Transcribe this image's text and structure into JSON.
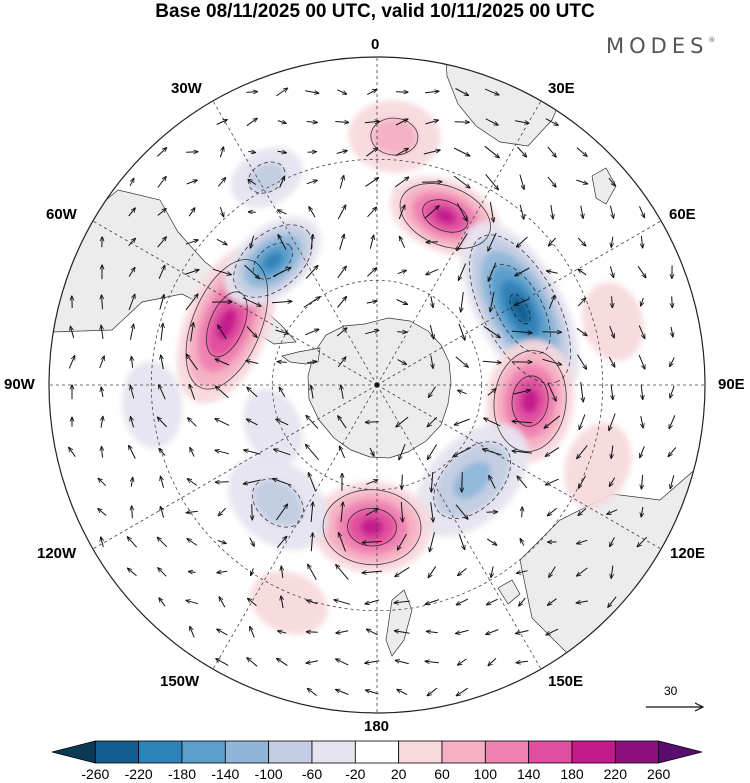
{
  "title": "Base 08/11/2025 00 UTC, valid 10/11/2025 00 UTC",
  "brand": "MODES",
  "brand_mark": "®",
  "longitude_labels": {
    "lon_0": "0",
    "lon_30e": "30E",
    "lon_60e": "60E",
    "lon_90e": "90E",
    "lon_120e": "120E",
    "lon_150e": "150E",
    "lon_180": "180",
    "lon_150w": "150W",
    "lon_120w": "120W",
    "lon_90w": "90W",
    "lon_60w": "60W",
    "lon_30w": "30W"
  },
  "vector_scale": {
    "value": "30"
  },
  "colorbar": {
    "labels": [
      "-260",
      "-220",
      "-180",
      "-140",
      "-100",
      "-60",
      "-20",
      "20",
      "60",
      "100",
      "140",
      "180",
      "220",
      "260"
    ],
    "colors": [
      "#0b3a57",
      "#135f8f",
      "#2f82b8",
      "#5a9ecb",
      "#8fb6d9",
      "#c3cde3",
      "#e6e4ef",
      "#ffffff",
      "#f8d9dd",
      "#f5b0c3",
      "#ee82b1",
      "#df4e9f",
      "#c31b8c",
      "#8d0f7c",
      "#560f6e"
    ]
  },
  "map_colors": {
    "land": "#ececec",
    "coast": "#333333",
    "grid": "#444444",
    "arrow": "#111111"
  },
  "anomalies": [
    {
      "name": "anomaly-high-africa-south",
      "lon": 22,
      "lat": -40,
      "value": 200,
      "a": 36,
      "b": 58
    },
    {
      "name": "anomaly-low-south-indian",
      "lon": 62,
      "lat": -45,
      "value": -240,
      "a": 44,
      "b": 96
    },
    {
      "name": "anomaly-high-kerguelen",
      "lon": 96,
      "lat": -47,
      "value": 210,
      "a": 44,
      "b": 62
    },
    {
      "name": "anomaly-low-south-australia",
      "lon": 135,
      "lat": -52,
      "value": -130,
      "a": 42,
      "b": 68
    },
    {
      "name": "anomaly-high-ross-sea",
      "lon": 182,
      "lat": -50,
      "value": 200,
      "a": 46,
      "b": 60
    },
    {
      "name": "anomaly-low-south-pacific",
      "lon": -140,
      "lat": -47,
      "value": -80,
      "a": 40,
      "b": 56
    },
    {
      "name": "anomaly-low-amundsen",
      "lon": -112,
      "lat": -58,
      "value": -60,
      "a": 28,
      "b": 40
    },
    {
      "name": "anomaly-high-south-america",
      "lon": -68,
      "lat": -45,
      "value": 190,
      "a": 42,
      "b": 84
    },
    {
      "name": "anomaly-low-south-atlantic",
      "lon": -40,
      "lat": -45,
      "value": -200,
      "a": 34,
      "b": 56
    },
    {
      "name": "anomaly-low-west-atlantic",
      "lon": -28,
      "lat": -28,
      "value": -70,
      "a": 28,
      "b": 38
    },
    {
      "name": "anomaly-high-atlantic-north",
      "lon": 4,
      "lat": -25,
      "value": 70,
      "a": 36,
      "b": 46
    },
    {
      "name": "anomaly-low-east-pacific",
      "lon": -95,
      "lat": -30,
      "value": -40,
      "a": 30,
      "b": 44
    },
    {
      "name": "anomaly-high-indian-east",
      "lon": 110,
      "lat": -28,
      "value": 60,
      "a": 32,
      "b": 44
    },
    {
      "name": "anomaly-high-indian-north",
      "lon": 75,
      "lat": -26,
      "value": 40,
      "a": 30,
      "b": 40
    },
    {
      "name": "anomaly-high-pacific-west",
      "lon": -158,
      "lat": -28,
      "value": 40,
      "a": 30,
      "b": 40
    }
  ],
  "cyclones": [
    {
      "lon": 22,
      "lat": -40,
      "dir": 1
    },
    {
      "lon": 62,
      "lat": -45,
      "dir": -1
    },
    {
      "lon": 96,
      "lat": -47,
      "dir": 1
    },
    {
      "lon": 135,
      "lat": -52,
      "dir": -1
    },
    {
      "lon": 182,
      "lat": -50,
      "dir": 1
    },
    {
      "lon": -140,
      "lat": -47,
      "dir": -1
    },
    {
      "lon": -68,
      "lat": -45,
      "dir": 1
    },
    {
      "lon": -40,
      "lat": -45,
      "dir": -1
    }
  ]
}
